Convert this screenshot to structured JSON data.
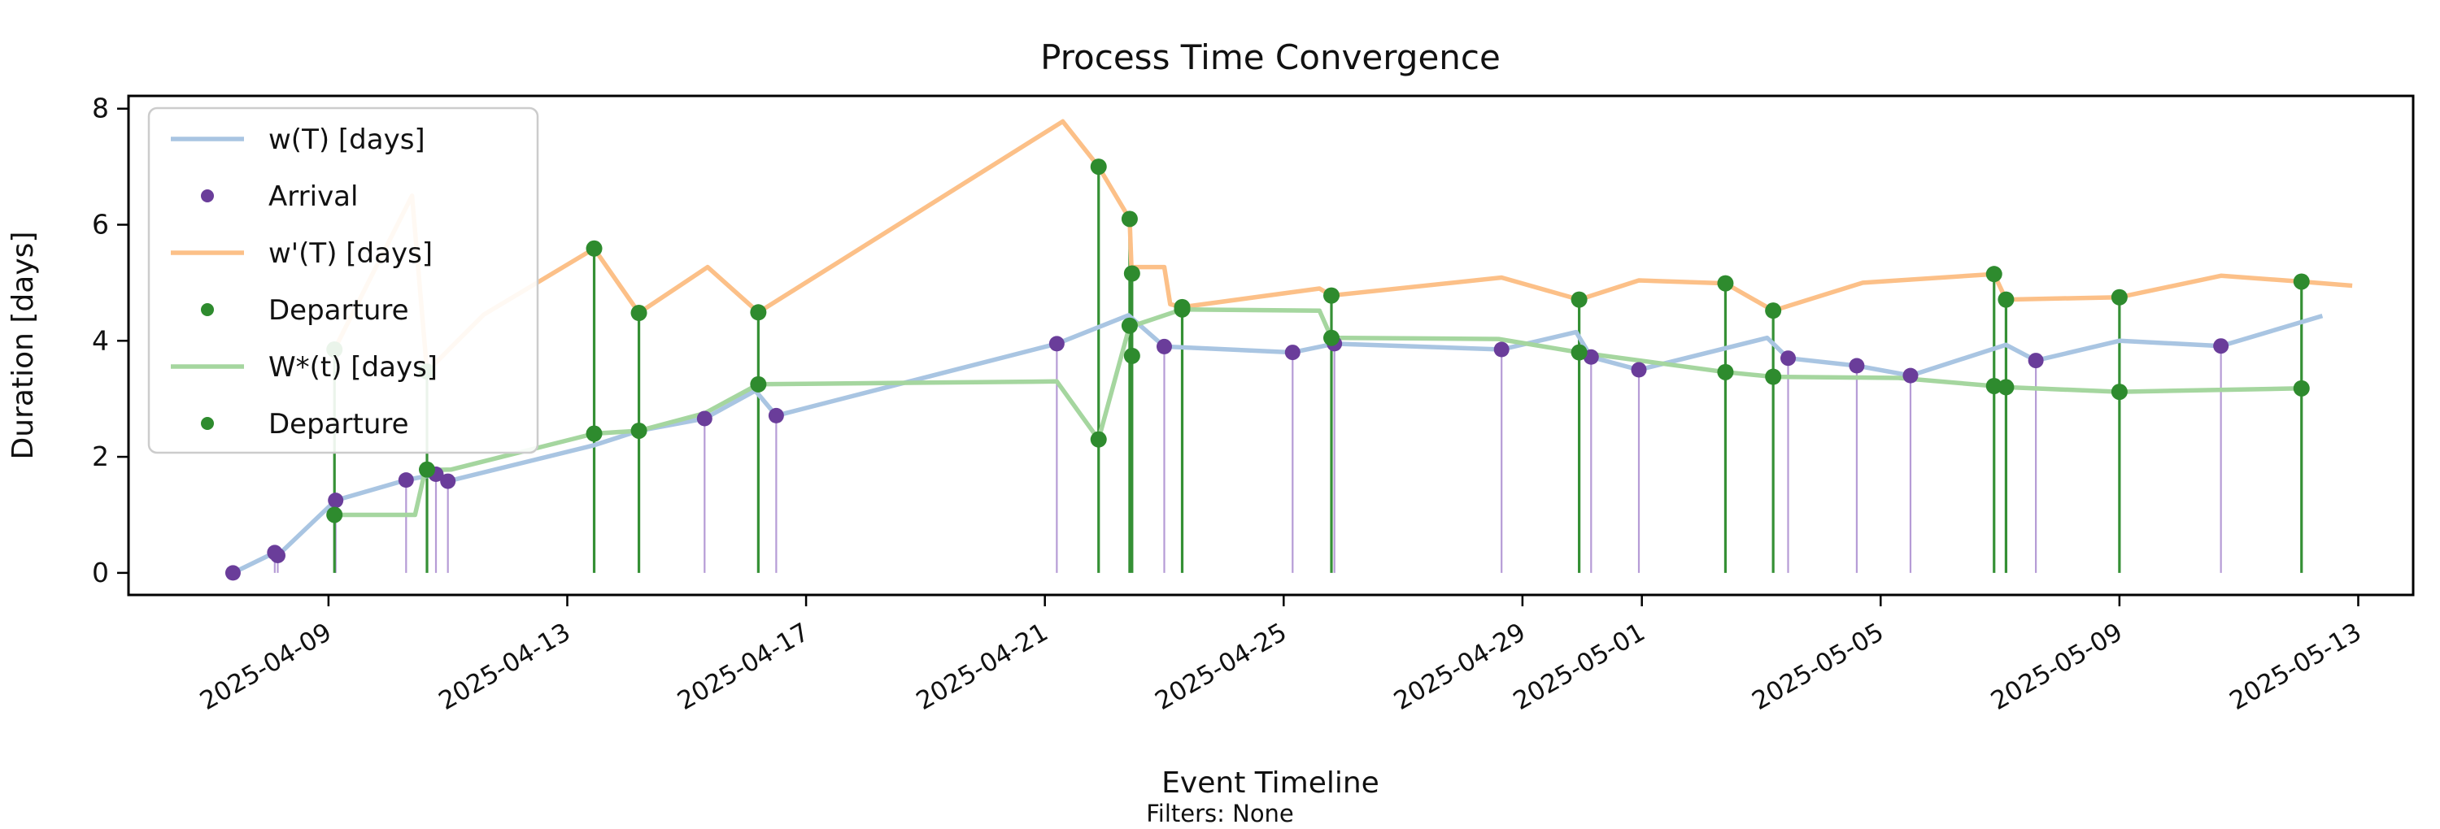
{
  "chart_data": {
    "type": "line",
    "title": "Process Time Convergence",
    "xlabel": "Event Timeline",
    "ylabel": "Duration [days]",
    "footnote": "Filters: None",
    "x_axis_epoch": "2025-04-09",
    "xlim_days": [
      -3.35,
      34.92
    ],
    "ylim": [
      -0.38,
      8.22
    ],
    "grid": false,
    "legend_position": "upper left",
    "x_ticks": [
      {
        "t": 0,
        "label": "2025-04-09"
      },
      {
        "t": 4,
        "label": "2025-04-13"
      },
      {
        "t": 8,
        "label": "2025-04-17"
      },
      {
        "t": 12,
        "label": "2025-04-21"
      },
      {
        "t": 16,
        "label": "2025-04-25"
      },
      {
        "t": 20,
        "label": "2025-04-29"
      },
      {
        "t": 22,
        "label": "2025-05-01"
      },
      {
        "t": 26,
        "label": "2025-05-05"
      },
      {
        "t": 30,
        "label": "2025-05-09"
      },
      {
        "t": 34,
        "label": "2025-05-13"
      }
    ],
    "y_ticks": [
      0,
      2,
      4,
      6,
      8
    ],
    "colors": {
      "w_line": "#a9c5e2",
      "wprime_line": "#fcc088",
      "wstar_line": "#a5d69f",
      "arrival_dot": "#6a3d9a",
      "departure_dot": "#2e8b2e",
      "arrival_stem": "#b69cd6",
      "departure_stem": "#359035",
      "spine": "#000000",
      "legend_border": "#cccccc"
    },
    "legend": [
      {
        "type": "line",
        "color_key": "w_line",
        "label": "w(T) [days]"
      },
      {
        "type": "dot",
        "color_key": "arrival_dot",
        "label": "Arrival"
      },
      {
        "type": "line",
        "color_key": "wprime_line",
        "label": "w'(T) [days]"
      },
      {
        "type": "dot",
        "color_key": "departure_dot",
        "label": "Departure"
      },
      {
        "type": "line",
        "color_key": "wstar_line",
        "label": "W*(t) [days]"
      },
      {
        "type": "dot",
        "color_key": "departure_dot",
        "label": "Departure"
      }
    ],
    "series": {
      "w_line": [
        [
          -1.6,
          0.0
        ],
        [
          -0.9,
          0.35
        ],
        [
          -0.85,
          0.3
        ],
        [
          0.12,
          1.25
        ],
        [
          1.3,
          1.6
        ],
        [
          1.8,
          1.7
        ],
        [
          2.0,
          1.58
        ],
        [
          4.45,
          2.2
        ],
        [
          5.2,
          2.45
        ],
        [
          6.3,
          2.66
        ],
        [
          7.15,
          3.14
        ],
        [
          7.5,
          2.71
        ],
        [
          12.2,
          3.95
        ],
        [
          13.4,
          4.44
        ],
        [
          14.0,
          3.9
        ],
        [
          16.15,
          3.8
        ],
        [
          16.85,
          3.95
        ],
        [
          19.65,
          3.85
        ],
        [
          20.9,
          4.15
        ],
        [
          21.15,
          3.72
        ],
        [
          21.95,
          3.5
        ],
        [
          24.1,
          4.05
        ],
        [
          24.45,
          3.7
        ],
        [
          25.6,
          3.57
        ],
        [
          26.5,
          3.4
        ],
        [
          28.1,
          3.93
        ],
        [
          28.6,
          3.66
        ],
        [
          30.0,
          4.0
        ],
        [
          31.7,
          3.91
        ],
        [
          33.4,
          4.43
        ]
      ],
      "wprime_line": [
        [
          0.1,
          3.85
        ],
        [
          1.4,
          6.5
        ],
        [
          1.65,
          3.47
        ],
        [
          2.6,
          4.45
        ],
        [
          4.45,
          5.59
        ],
        [
          5.2,
          4.48
        ],
        [
          6.35,
          5.27
        ],
        [
          7.2,
          4.49
        ],
        [
          12.3,
          7.78
        ],
        [
          12.9,
          7.0
        ],
        [
          13.42,
          6.1
        ],
        [
          13.45,
          5.27
        ],
        [
          14.0,
          5.27
        ],
        [
          14.1,
          4.63
        ],
        [
          14.3,
          4.58
        ],
        [
          16.6,
          4.9
        ],
        [
          16.8,
          4.78
        ],
        [
          19.65,
          5.09
        ],
        [
          20.95,
          4.71
        ],
        [
          21.95,
          5.04
        ],
        [
          23.4,
          4.99
        ],
        [
          24.2,
          4.52
        ],
        [
          25.7,
          5.0
        ],
        [
          27.9,
          5.15
        ],
        [
          28.1,
          4.71
        ],
        [
          30.0,
          4.75
        ],
        [
          31.7,
          5.12
        ],
        [
          33.05,
          5.02
        ],
        [
          33.9,
          4.95
        ]
      ],
      "wstar_line": [
        [
          0.1,
          1.0
        ],
        [
          1.45,
          1.0
        ],
        [
          1.62,
          1.77
        ],
        [
          2.05,
          1.78
        ],
        [
          4.45,
          2.4
        ],
        [
          5.2,
          2.45
        ],
        [
          6.3,
          2.75
        ],
        [
          7.2,
          3.25
        ],
        [
          12.2,
          3.3
        ],
        [
          12.9,
          2.3
        ],
        [
          13.42,
          4.26
        ],
        [
          13.6,
          4.3
        ],
        [
          14.3,
          4.54
        ],
        [
          16.6,
          4.52
        ],
        [
          16.8,
          4.05
        ],
        [
          19.6,
          4.03
        ],
        [
          20.95,
          3.8
        ],
        [
          23.4,
          3.46
        ],
        [
          24.2,
          3.38
        ],
        [
          26.3,
          3.36
        ],
        [
          27.9,
          3.22
        ],
        [
          28.1,
          3.2
        ],
        [
          30.0,
          3.12
        ],
        [
          33.05,
          3.18
        ]
      ],
      "arrivals": [
        [
          -1.6,
          0.0
        ],
        [
          -0.9,
          0.35
        ],
        [
          -0.85,
          0.3
        ],
        [
          0.12,
          1.25
        ],
        [
          1.3,
          1.6
        ],
        [
          1.8,
          1.7
        ],
        [
          2.0,
          1.58
        ],
        [
          6.3,
          2.66
        ],
        [
          7.5,
          2.71
        ],
        [
          12.2,
          3.95
        ],
        [
          14.0,
          3.9
        ],
        [
          16.15,
          3.8
        ],
        [
          16.85,
          3.95
        ],
        [
          19.65,
          3.85
        ],
        [
          21.15,
          3.72
        ],
        [
          21.95,
          3.5
        ],
        [
          24.45,
          3.7
        ],
        [
          25.6,
          3.57
        ],
        [
          26.5,
          3.4
        ],
        [
          28.6,
          3.66
        ],
        [
          31.7,
          3.91
        ]
      ],
      "departures_upper": [
        [
          0.1,
          3.85
        ],
        [
          1.65,
          3.47
        ],
        [
          4.45,
          5.59
        ],
        [
          5.2,
          4.48
        ],
        [
          7.2,
          4.49
        ],
        [
          12.9,
          7.0
        ],
        [
          13.42,
          6.1
        ],
        [
          13.46,
          5.16
        ],
        [
          14.3,
          4.58
        ],
        [
          16.8,
          4.78
        ],
        [
          20.95,
          4.71
        ],
        [
          23.4,
          4.99
        ],
        [
          24.2,
          4.52
        ],
        [
          27.9,
          5.15
        ],
        [
          28.1,
          4.71
        ],
        [
          30.0,
          4.75
        ],
        [
          33.05,
          5.02
        ]
      ],
      "departures_lower": [
        [
          0.1,
          1.0
        ],
        [
          1.65,
          1.78
        ],
        [
          4.45,
          2.4
        ],
        [
          5.2,
          2.45
        ],
        [
          7.2,
          3.25
        ],
        [
          12.9,
          2.3
        ],
        [
          13.42,
          4.26
        ],
        [
          13.46,
          3.74
        ],
        [
          14.3,
          4.54
        ],
        [
          16.8,
          4.05
        ],
        [
          20.95,
          3.8
        ],
        [
          23.4,
          3.46
        ],
        [
          24.2,
          3.38
        ],
        [
          27.9,
          3.22
        ],
        [
          28.1,
          3.2
        ],
        [
          30.0,
          3.12
        ],
        [
          33.05,
          3.18
        ]
      ]
    }
  }
}
